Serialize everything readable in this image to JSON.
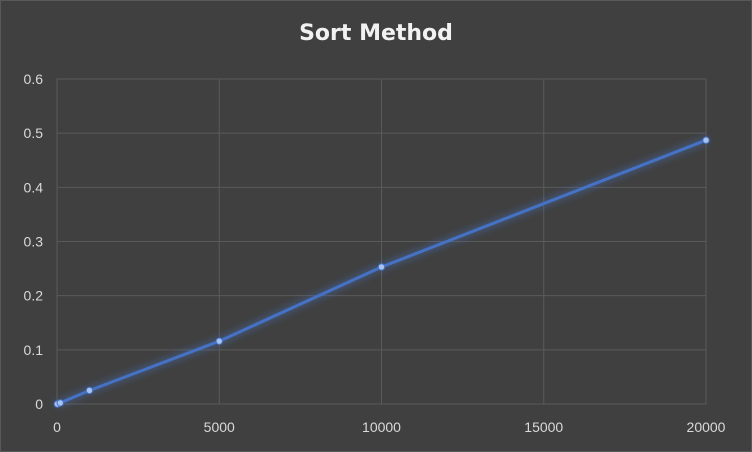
{
  "chart_data": {
    "type": "scatter",
    "title": "Sort Method",
    "xlabel": "",
    "ylabel": "",
    "xlim": [
      0,
      20000
    ],
    "ylim": [
      0,
      0.6
    ],
    "x_ticks": [
      0,
      5000,
      10000,
      15000,
      20000
    ],
    "y_ticks": [
      0,
      0.1,
      0.2,
      0.3,
      0.4,
      0.5,
      0.6
    ],
    "x_tick_labels": [
      "0",
      "5000",
      "10000",
      "15000",
      "20000"
    ],
    "y_tick_labels": [
      "0",
      "0.1",
      "0.2",
      "0.3",
      "0.4",
      "0.5",
      "0.6"
    ],
    "grid": true,
    "legend": "none",
    "series": [
      {
        "color": "#4472c4",
        "points": [
          {
            "x": 10,
            "y": 0.0
          },
          {
            "x": 100,
            "y": 0.002
          },
          {
            "x": 1000,
            "y": 0.025
          },
          {
            "x": 5000,
            "y": 0.116
          },
          {
            "x": 10000,
            "y": 0.253
          },
          {
            "x": 20000,
            "y": 0.487
          }
        ]
      }
    ]
  }
}
